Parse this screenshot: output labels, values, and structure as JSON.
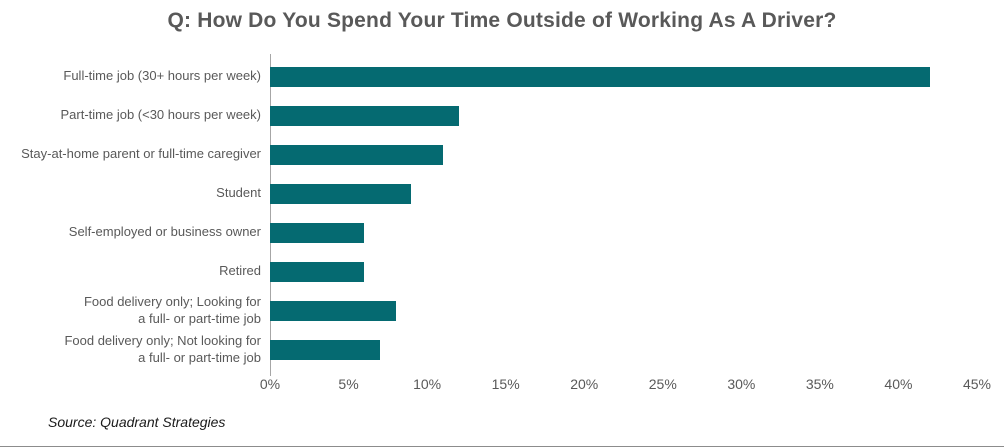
{
  "title": "Q: How Do You Spend Your Time Outside of Working As A Driver?",
  "source": "Source: Quadrant Strategies",
  "colors": {
    "bar": "#056A71",
    "title_text": "#595959",
    "label_text": "#595959",
    "axis_line": "#a6a6a6"
  },
  "chart_data": {
    "type": "bar",
    "orientation": "horizontal",
    "title": "Q: How Do You Spend Your Time Outside of Working As A Driver?",
    "categories": [
      "Full-time job (30+ hours per week)",
      "Part-time job (<30 hours per week)",
      "Stay-at-home parent or full-time caregiver",
      "Student",
      "Self-employed or business owner",
      "Retired",
      "Food delivery only; Looking for\na full- or part-time job",
      "Food delivery only; Not looking for\na full- or part-time job"
    ],
    "values": [
      42,
      12,
      11,
      9,
      6,
      6,
      8,
      7
    ],
    "value_suffix": "%",
    "xlabel": "",
    "ylabel": "",
    "xlim": [
      0,
      45
    ],
    "x_ticks": [
      "0%",
      "5%",
      "10%",
      "15%",
      "20%",
      "25%",
      "30%",
      "35%",
      "40%",
      "45%"
    ],
    "grid": false,
    "legend": "none"
  }
}
